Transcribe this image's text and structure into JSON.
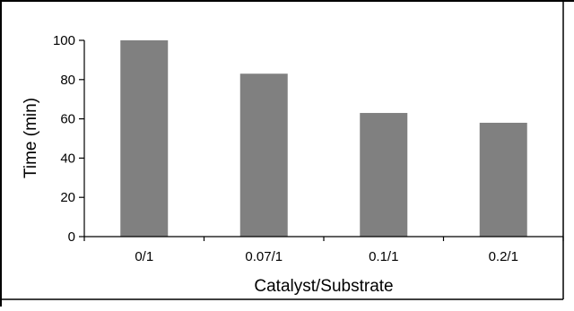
{
  "chart_data": {
    "type": "bar",
    "categories": [
      "0/1",
      "0.07/1",
      "0.1/1",
      "0.2/1"
    ],
    "values": [
      100,
      83,
      63,
      58
    ],
    "xlabel": "Catalyst/Substrate",
    "ylabel": "Time (min)",
    "ylim": [
      0,
      100
    ],
    "yticks": [
      0,
      20,
      40,
      60,
      80,
      100
    ],
    "grid": false,
    "legend": "none",
    "bar_color": "#808080",
    "axis_color": "#000000"
  }
}
